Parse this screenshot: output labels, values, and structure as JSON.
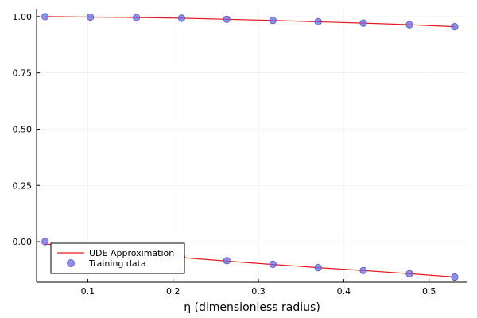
{
  "chart_data": {
    "type": "scatter",
    "title": "",
    "xlabel": "η (dimensionless radius)",
    "ylabel": "",
    "xlim": [
      0.04,
      0.545
    ],
    "ylim": [
      -0.18,
      1.035
    ],
    "xticks": [
      0.1,
      0.2,
      0.3,
      0.4,
      0.5
    ],
    "xtick_labels": [
      "0.1",
      "0.2",
      "0.3",
      "0.4",
      "0.5"
    ],
    "yticks": [
      0.0,
      0.25,
      0.5,
      0.75,
      1.0
    ],
    "ytick_labels": [
      "0.00",
      "0.25",
      "0.50",
      "0.75",
      "1.00"
    ],
    "grid": true,
    "legend_position": "bottom-left",
    "series": [
      {
        "name": "UDE Approximation",
        "kind": "line",
        "color": "#e6191c",
        "segments": [
          {
            "x": [
              0.05,
              0.103,
              0.157,
              0.21,
              0.263,
              0.317,
              0.37,
              0.423,
              0.477,
              0.53
            ],
            "y": [
              1.0,
              0.998,
              0.996,
              0.993,
              0.988,
              0.983,
              0.977,
              0.971,
              0.964,
              0.955
            ]
          },
          {
            "x": [
              0.05,
              0.103,
              0.157,
              0.21,
              0.263,
              0.317,
              0.37,
              0.423,
              0.477,
              0.53
            ],
            "y": [
              -0.01,
              -0.033,
              -0.053,
              -0.07,
              -0.086,
              -0.101,
              -0.115,
              -0.128,
              -0.142,
              -0.157
            ]
          }
        ]
      },
      {
        "name": "Training data",
        "kind": "scatter",
        "color": "#6b6be0",
        "segments": [
          {
            "x": [
              0.05,
              0.103,
              0.157,
              0.21,
              0.263,
              0.317,
              0.37,
              0.423,
              0.477,
              0.53
            ],
            "y": [
              1.0,
              0.998,
              0.996,
              0.993,
              0.988,
              0.983,
              0.977,
              0.971,
              0.964,
              0.955
            ]
          },
          {
            "x": [
              0.05,
              0.103,
              0.157,
              0.21,
              0.263,
              0.317,
              0.37,
              0.423,
              0.477,
              0.53
            ],
            "y": [
              0.0,
              -0.029,
              -0.05,
              -0.068,
              -0.084,
              -0.1,
              -0.115,
              -0.128,
              -0.142,
              -0.157
            ]
          }
        ]
      }
    ]
  }
}
